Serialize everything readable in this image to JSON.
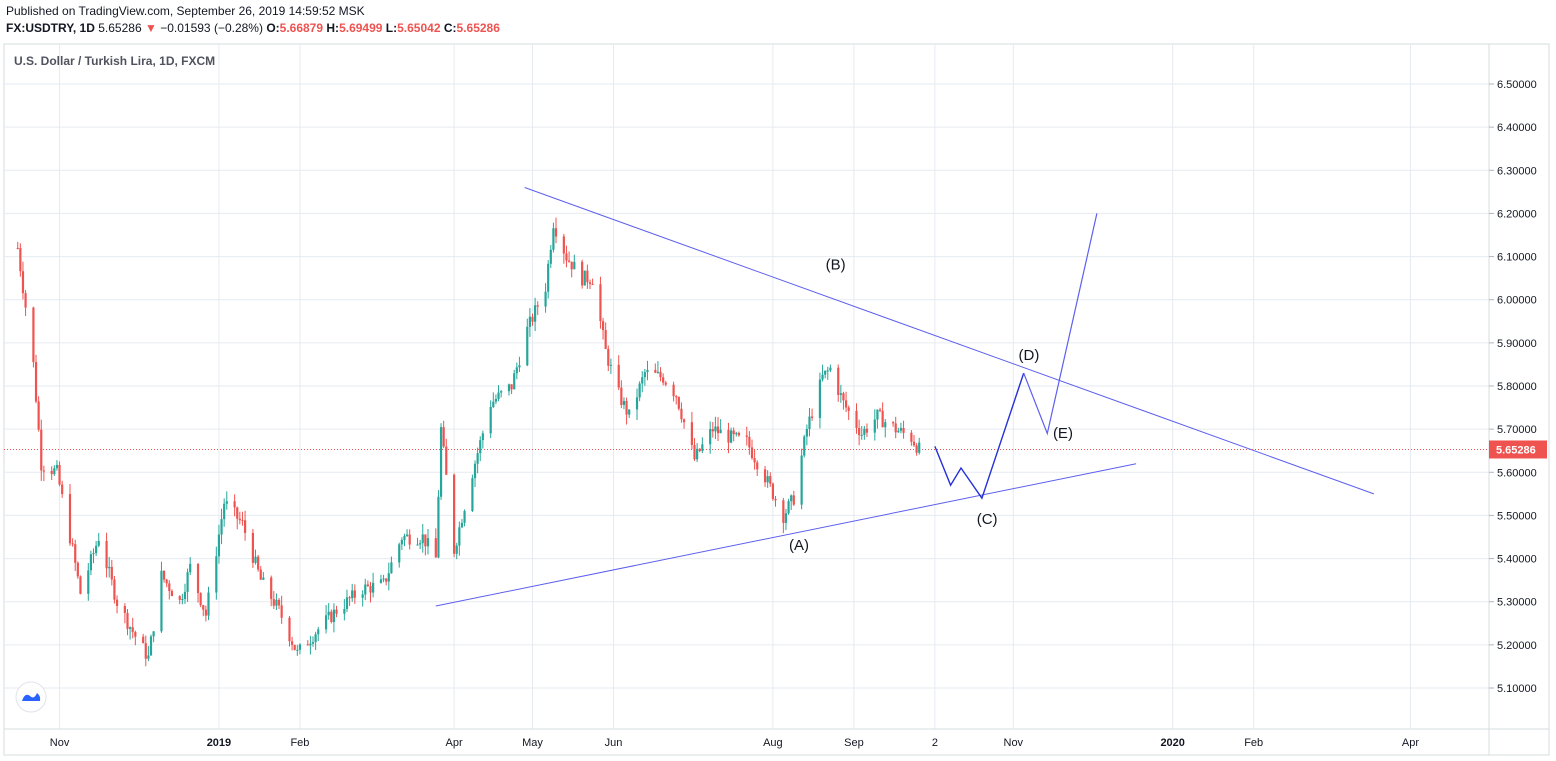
{
  "header": {
    "published": "Published on TradingView.com, September 26, 2019 14:59:52 MSK",
    "symbol": "FX:USDTRY, 1D",
    "last": "5.65286",
    "change": "−0.01593 (−0.28%)",
    "open_label": "O:",
    "open": "5.66879",
    "high_label": "H:",
    "high": "5.69499",
    "low_label": "L:",
    "low": "5.65042",
    "close_label": "C:",
    "close": "5.65286",
    "down_arrow": "▼"
  },
  "colors": {
    "up": "#26a69a",
    "down": "#ef5350",
    "drawing": "#5d5fef",
    "projection": "#2430d8",
    "grid": "#e6ebf1",
    "price_tag": "#ef5350"
  },
  "chart_data": {
    "type": "candlestick",
    "title": "U.S. Dollar / Turkish Lira, 1D, FXCM",
    "ylim": [
      5.03,
      6.61
    ],
    "y_ticks": [
      "6.50000",
      "6.40000",
      "6.30000",
      "6.20000",
      "6.10000",
      "6.00000",
      "5.90000",
      "5.80000",
      "5.70000",
      "5.60000",
      "5.50000",
      "5.40000",
      "5.30000",
      "5.20000",
      "5.10000"
    ],
    "x_ticks": [
      "Nov",
      "2019",
      "Feb",
      "Apr",
      "May",
      "Jun",
      "Aug",
      "Sep",
      "2",
      "Nov",
      "2020",
      "Feb",
      "Apr"
    ],
    "bold_x_ticks": [
      "2019",
      "2020"
    ],
    "last_price": "5.65286",
    "price_path": [
      [
        "2018-10-16",
        6.12
      ],
      [
        "2018-10-22",
        5.85
      ],
      [
        "2018-10-25",
        5.62
      ],
      [
        "2018-10-31",
        5.6
      ],
      [
        "2018-11-06",
        5.42
      ],
      [
        "2018-11-09",
        5.32
      ],
      [
        "2018-11-16",
        5.45
      ],
      [
        "2018-11-23",
        5.3
      ],
      [
        "2018-11-30",
        5.22
      ],
      [
        "2018-12-05",
        5.17
      ],
      [
        "2018-12-10",
        5.36
      ],
      [
        "2018-12-17",
        5.3
      ],
      [
        "2018-12-21",
        5.38
      ],
      [
        "2018-12-27",
        5.27
      ],
      [
        "2019-01-03",
        5.53
      ],
      [
        "2019-01-10",
        5.48
      ],
      [
        "2019-01-17",
        5.35
      ],
      [
        "2019-01-24",
        5.28
      ],
      [
        "2019-01-31",
        5.18
      ],
      [
        "2019-02-07",
        5.23
      ],
      [
        "2019-02-15",
        5.28
      ],
      [
        "2019-02-25",
        5.33
      ],
      [
        "2019-03-05",
        5.34
      ],
      [
        "2019-03-12",
        5.45
      ],
      [
        "2019-03-20",
        5.45
      ],
      [
        "2019-03-25",
        5.4
      ],
      [
        "2019-03-27",
        5.7
      ],
      [
        "2019-04-01",
        5.42
      ],
      [
        "2019-04-08",
        5.6
      ],
      [
        "2019-04-15",
        5.76
      ],
      [
        "2019-04-23",
        5.8
      ],
      [
        "2019-04-29",
        5.93
      ],
      [
        "2019-05-06",
        6.03
      ],
      [
        "2019-05-09",
        6.18
      ],
      [
        "2019-05-14",
        6.1
      ],
      [
        "2019-05-20",
        6.05
      ],
      [
        "2019-05-24",
        6.05
      ],
      [
        "2019-05-29",
        5.88
      ],
      [
        "2019-06-03",
        5.78
      ],
      [
        "2019-06-07",
        5.73
      ],
      [
        "2019-06-13",
        5.83
      ],
      [
        "2019-06-20",
        5.82
      ],
      [
        "2019-06-25",
        5.78
      ],
      [
        "2019-07-02",
        5.63
      ],
      [
        "2019-07-09",
        5.7
      ],
      [
        "2019-07-16",
        5.68
      ],
      [
        "2019-07-22",
        5.67
      ],
      [
        "2019-07-29",
        5.59
      ],
      [
        "2019-08-05",
        5.5
      ],
      [
        "2019-08-09",
        5.54
      ],
      [
        "2019-08-14",
        5.7
      ],
      [
        "2019-08-20",
        5.82
      ],
      [
        "2019-08-23",
        5.84
      ],
      [
        "2019-08-28",
        5.76
      ],
      [
        "2019-09-04",
        5.69
      ],
      [
        "2019-09-10",
        5.73
      ],
      [
        "2019-09-17",
        5.7
      ],
      [
        "2019-09-23",
        5.68
      ],
      [
        "2019-09-26",
        5.65286
      ]
    ],
    "annotations": {
      "upper_trendline": [
        [
          "2019-04-28",
          6.26
        ],
        [
          "2020-03-18",
          5.55
        ]
      ],
      "lower_trendline": [
        [
          "2019-03-25",
          5.29
        ],
        [
          "2019-12-18",
          5.62
        ]
      ],
      "projection_path": [
        [
          "2019-10-02",
          5.66
        ],
        [
          "2019-10-08",
          5.57
        ],
        [
          "2019-10-12",
          5.61
        ],
        [
          "2019-10-20",
          5.54
        ],
        [
          "2019-11-05",
          5.83
        ]
      ],
      "projection_path_2": [
        [
          "2019-11-05",
          5.83
        ],
        [
          "2019-11-14",
          5.69
        ],
        [
          "2019-12-03",
          6.2
        ]
      ],
      "labels": [
        {
          "text": "(A)",
          "date": "2019-08-11",
          "price": 5.42
        },
        {
          "text": "(B)",
          "date": "2019-08-25",
          "price": 6.07
        },
        {
          "text": "(C)",
          "date": "2019-10-22",
          "price": 5.48
        },
        {
          "text": "(D)",
          "date": "2019-11-07",
          "price": 5.86
        },
        {
          "text": "(E)",
          "date": "2019-11-20",
          "price": 5.68
        }
      ]
    }
  }
}
